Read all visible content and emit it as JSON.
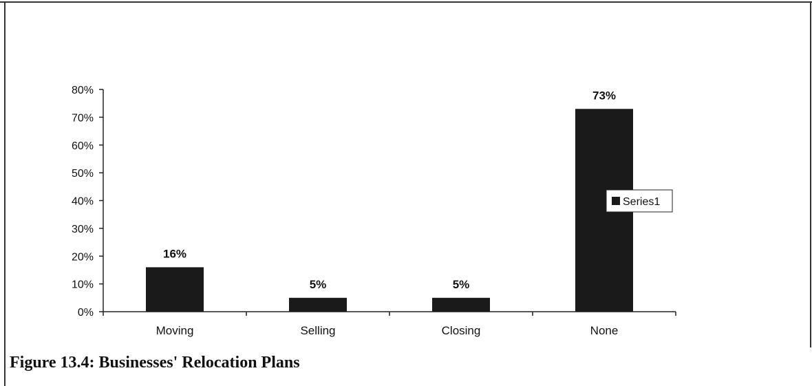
{
  "caption": "Figure 13.4: Businesses' Relocation Plans",
  "colors": {
    "bar": "#1a1a1a",
    "axis": "#222222",
    "frame": "#333333"
  },
  "chart_data": {
    "type": "bar",
    "categories": [
      "Moving",
      "Selling",
      "Closing",
      "None"
    ],
    "series": [
      {
        "name": "Series1",
        "values": [
          16,
          5,
          5,
          73
        ],
        "data_labels": [
          "16%",
          "5%",
          "5%",
          "73%"
        ]
      }
    ],
    "ylim": [
      0,
      80
    ],
    "yticks": [
      0,
      10,
      20,
      30,
      40,
      50,
      60,
      70,
      80
    ],
    "ytick_labels": [
      "0%",
      "10%",
      "20%",
      "30%",
      "40%",
      "50%",
      "60%",
      "70%",
      "80%"
    ],
    "grid": false,
    "legend": "right",
    "title": "",
    "xlabel": "",
    "ylabel": ""
  }
}
